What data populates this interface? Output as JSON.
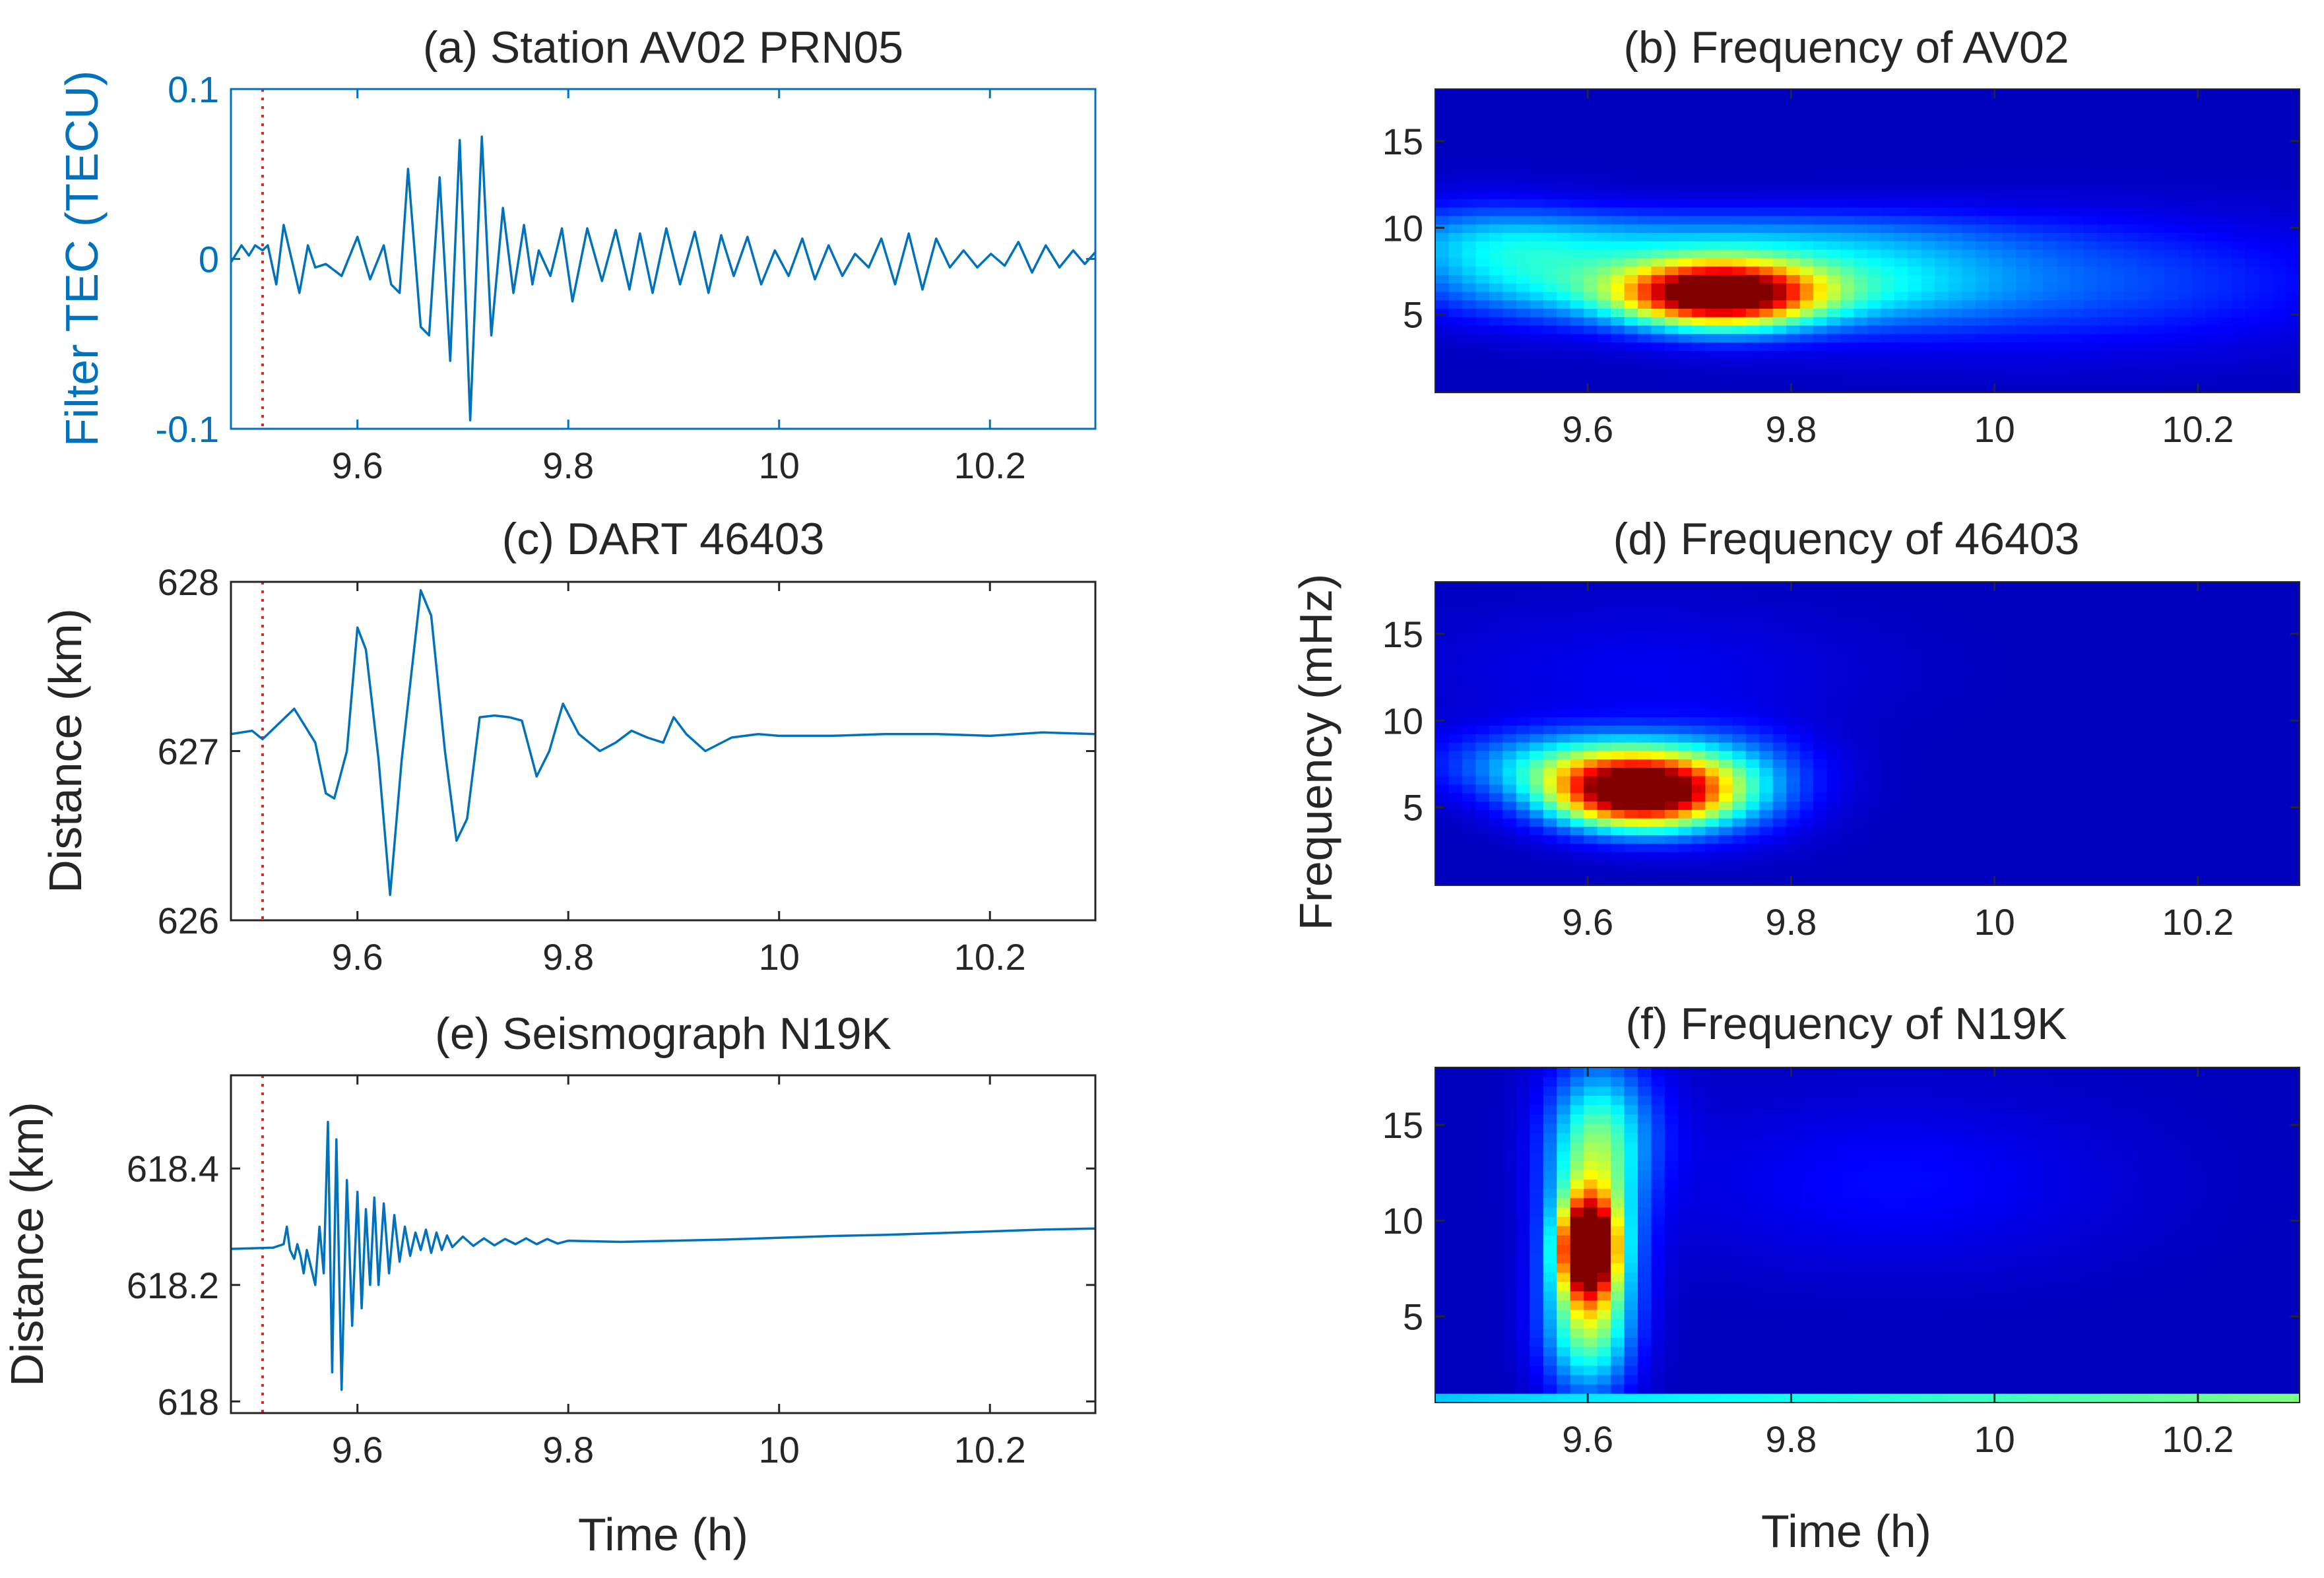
{
  "chart_data": [
    {
      "id": "a",
      "type": "line",
      "title": "(a) Station  AV02  PRN05",
      "xlabel": "",
      "ylabel": "Filter TEC (TECU)",
      "ylabel_color": "#0072BD",
      "xlim": [
        9.48,
        10.3
      ],
      "ylim": [
        -0.1,
        0.1
      ],
      "xticks": [
        9.6,
        9.8,
        10,
        10.2
      ],
      "xtick_labels": [
        "9.6",
        "9.8",
        "10",
        "10.2"
      ],
      "yticks": [
        -0.1,
        0,
        0.1
      ],
      "ytick_labels": [
        "-0.1",
        "0",
        "0.1"
      ],
      "marker_line_x": 9.51,
      "series": [
        {
          "name": "Filter TEC",
          "color": "#0072BD",
          "x": [
            9.48,
            9.49,
            9.497,
            9.503,
            9.51,
            9.515,
            9.523,
            9.53,
            9.545,
            9.553,
            9.56,
            9.57,
            9.585,
            9.6,
            9.612,
            9.625,
            9.632,
            9.64,
            9.648,
            9.66,
            9.668,
            9.678,
            9.688,
            9.697,
            9.707,
            9.718,
            9.727,
            9.738,
            9.748,
            9.758,
            9.766,
            9.772,
            9.783,
            9.794,
            9.804,
            9.818,
            9.832,
            9.845,
            9.858,
            9.868,
            9.88,
            9.893,
            9.906,
            9.92,
            9.933,
            9.945,
            9.957,
            9.97,
            9.983,
            9.996,
            10.009,
            10.022,
            10.034,
            10.047,
            10.06,
            10.072,
            10.085,
            10.097,
            10.11,
            10.123,
            10.136,
            10.149,
            10.162,
            10.175,
            10.188,
            10.201,
            10.214,
            10.227,
            10.24,
            10.253,
            10.266,
            10.279,
            10.29,
            10.3
          ],
          "y": [
            -0.002,
            0.008,
            0.002,
            0.008,
            0.005,
            0.008,
            -0.015,
            0.02,
            -0.02,
            0.008,
            -0.005,
            -0.003,
            -0.01,
            0.013,
            -0.012,
            0.008,
            -0.015,
            -0.02,
            0.053,
            -0.04,
            -0.045,
            0.048,
            -0.06,
            0.07,
            -0.095,
            0.072,
            -0.045,
            0.03,
            -0.02,
            0.02,
            -0.015,
            0.005,
            -0.01,
            0.018,
            -0.025,
            0.018,
            -0.013,
            0.017,
            -0.018,
            0.015,
            -0.02,
            0.018,
            -0.015,
            0.016,
            -0.02,
            0.014,
            -0.01,
            0.013,
            -0.015,
            0.005,
            -0.01,
            0.012,
            -0.012,
            0.008,
            -0.01,
            0.003,
            -0.005,
            0.012,
            -0.015,
            0.015,
            -0.018,
            0.012,
            -0.005,
            0.005,
            -0.005,
            0.003,
            -0.004,
            0.01,
            -0.008,
            0.008,
            -0.005,
            0.005,
            -0.003,
            0.004
          ]
        }
      ]
    },
    {
      "id": "c",
      "type": "line",
      "title": "(c) DART 46403",
      "xlabel": "",
      "ylabel": "Distance (km)",
      "xlim": [
        9.48,
        10.3
      ],
      "ylim": [
        626,
        628
      ],
      "xticks": [
        9.6,
        9.8,
        10,
        10.2
      ],
      "xtick_labels": [
        "9.6",
        "9.8",
        "10",
        "10.2"
      ],
      "yticks": [
        626,
        627,
        628
      ],
      "ytick_labels": [
        "626",
        "627",
        "628"
      ],
      "marker_line_x": 9.51,
      "series": [
        {
          "name": "DART 46403",
          "color": "#0072BD",
          "x": [
            9.48,
            9.5,
            9.51,
            9.52,
            9.54,
            9.56,
            9.57,
            9.578,
            9.59,
            9.6,
            9.608,
            9.62,
            9.631,
            9.642,
            9.66,
            9.67,
            9.683,
            9.694,
            9.704,
            9.716,
            9.73,
            9.744,
            9.756,
            9.77,
            9.782,
            9.795,
            9.81,
            9.83,
            9.845,
            9.86,
            9.875,
            9.89,
            9.9,
            9.912,
            9.93,
            9.955,
            9.98,
            10.0,
            10.05,
            10.1,
            10.15,
            10.2,
            10.25,
            10.3
          ],
          "y": [
            627.1,
            627.12,
            627.07,
            627.13,
            627.25,
            627.05,
            626.75,
            626.72,
            627.0,
            627.73,
            627.6,
            626.95,
            626.15,
            626.95,
            627.95,
            627.8,
            627.0,
            626.47,
            626.6,
            627.2,
            627.21,
            627.2,
            627.18,
            626.85,
            627.0,
            627.28,
            627.1,
            627.0,
            627.05,
            627.12,
            627.08,
            627.05,
            627.2,
            627.1,
            627.0,
            627.08,
            627.1,
            627.09,
            627.09,
            627.1,
            627.1,
            627.09,
            627.11,
            627.1
          ]
        }
      ]
    },
    {
      "id": "e",
      "type": "line",
      "title": "(e) Seismograph N19K",
      "xlabel": "Time (h)",
      "ylabel": "Distance (km)",
      "xlim": [
        9.48,
        10.3
      ],
      "ylim": [
        617.98,
        618.56
      ],
      "xticks": [
        9.6,
        9.8,
        10,
        10.2
      ],
      "xtick_labels": [
        "9.6",
        "9.8",
        "10",
        "10.2"
      ],
      "yticks": [
        618.0,
        618.2,
        618.4
      ],
      "ytick_labels": [
        "618",
        "618.2",
        "618.4"
      ],
      "marker_line_x": 9.51,
      "series": [
        {
          "name": "Seismograph N19K",
          "color": "#0072BD",
          "x": [
            9.48,
            9.5,
            9.52,
            9.53,
            9.533,
            9.536,
            9.54,
            9.543,
            9.546,
            9.549,
            9.552,
            9.556,
            9.56,
            9.564,
            9.568,
            9.572,
            9.576,
            9.58,
            9.585,
            9.59,
            9.595,
            9.6,
            9.604,
            9.608,
            9.612,
            9.616,
            9.62,
            9.625,
            9.63,
            9.635,
            9.64,
            9.645,
            9.65,
            9.655,
            9.66,
            9.665,
            9.67,
            9.675,
            9.68,
            9.685,
            9.69,
            9.7,
            9.71,
            9.72,
            9.73,
            9.74,
            9.75,
            9.76,
            9.77,
            9.78,
            9.79,
            9.8,
            9.85,
            9.9,
            9.95,
            10.0,
            10.05,
            10.1,
            10.15,
            10.2,
            10.25,
            10.3
          ],
          "y": [
            618.262,
            618.263,
            618.264,
            618.27,
            618.3,
            618.26,
            618.245,
            618.27,
            618.25,
            618.22,
            618.26,
            618.23,
            618.2,
            618.3,
            618.22,
            618.48,
            618.05,
            618.45,
            618.02,
            618.38,
            618.13,
            618.36,
            618.16,
            618.33,
            618.2,
            618.35,
            618.2,
            618.34,
            618.22,
            618.32,
            618.24,
            618.3,
            618.25,
            618.29,
            618.26,
            618.295,
            618.255,
            618.29,
            618.26,
            618.285,
            618.265,
            618.283,
            618.267,
            618.28,
            618.268,
            618.279,
            618.27,
            618.28,
            618.27,
            618.279,
            618.271,
            618.276,
            618.274,
            618.276,
            618.278,
            618.281,
            618.284,
            618.286,
            618.289,
            618.292,
            618.295,
            618.297
          ]
        }
      ]
    },
    {
      "id": "b",
      "type": "heatmap",
      "title": "(b) Frequency of AV02",
      "xlabel": "",
      "ylabel": "",
      "xlim": [
        9.45,
        10.3
      ],
      "ylim": [
        0.5,
        18
      ],
      "xticks": [
        9.6,
        9.8,
        10,
        10.2
      ],
      "xtick_labels": [
        "9.6",
        "9.8",
        "10",
        "10.2"
      ],
      "yticks": [
        5,
        10,
        15
      ],
      "ytick_labels": [
        "5",
        "10",
        "15"
      ],
      "colormap": "jet",
      "peaks": [
        {
          "t": 9.73,
          "f": 6.2,
          "st": 0.065,
          "sf": 1.3,
          "amp": 1.0
        },
        {
          "t": 9.6,
          "f": 6.8,
          "st": 0.09,
          "sf": 1.6,
          "amp": 0.22
        },
        {
          "t": 9.86,
          "f": 6.8,
          "st": 0.1,
          "sf": 1.7,
          "amp": 0.2
        },
        {
          "t": 9.7,
          "f": 9.5,
          "st": 0.2,
          "sf": 1.2,
          "amp": 0.16
        },
        {
          "t": 10.05,
          "f": 6.8,
          "st": 0.2,
          "sf": 2.5,
          "amp": 0.15
        },
        {
          "t": 9.5,
          "f": 8.5,
          "st": 0.08,
          "sf": 2.0,
          "amp": 0.18
        }
      ],
      "background": 0.06
    },
    {
      "id": "d",
      "type": "heatmap",
      "title": "(d) Frequency of 46403",
      "xlabel": "",
      "ylabel": "Frequency (mHz)",
      "xlim": [
        9.45,
        10.3
      ],
      "ylim": [
        0.5,
        18
      ],
      "xticks": [
        9.6,
        9.8,
        10,
        10.2
      ],
      "xtick_labels": [
        "9.6",
        "9.8",
        "10",
        "10.2"
      ],
      "yticks": [
        5,
        10,
        15
      ],
      "ytick_labels": [
        "5",
        "10",
        "15"
      ],
      "colormap": "jet",
      "peaks": [
        {
          "t": 9.65,
          "f": 5.8,
          "st": 0.06,
          "sf": 1.4,
          "amp": 1.0
        },
        {
          "t": 9.6,
          "f": 7.5,
          "st": 0.09,
          "sf": 1.4,
          "amp": 0.32
        },
        {
          "t": 9.74,
          "f": 6.5,
          "st": 0.06,
          "sf": 2.0,
          "amp": 0.18
        },
        {
          "t": 9.65,
          "f": 13.0,
          "st": 0.15,
          "sf": 2.5,
          "amp": 0.05
        }
      ],
      "background": 0.06
    },
    {
      "id": "f",
      "type": "heatmap",
      "title": "(f) Frequency of N19K",
      "xlabel": "Time (h)",
      "ylabel": "",
      "xlim": [
        9.45,
        10.3
      ],
      "ylim": [
        0.5,
        18
      ],
      "xticks": [
        9.6,
        9.8,
        10,
        10.2
      ],
      "xtick_labels": [
        "9.6",
        "9.8",
        "10",
        "10.2"
      ],
      "yticks": [
        5,
        10,
        15
      ],
      "ytick_labels": [
        "5",
        "10",
        "15"
      ],
      "colormap": "jet",
      "peaks": [
        {
          "t": 9.6,
          "f": 8.6,
          "st": 0.018,
          "sf": 1.6,
          "amp": 1.0
        },
        {
          "t": 9.605,
          "f": 10.5,
          "st": 0.03,
          "sf": 4.0,
          "amp": 0.45
        },
        {
          "t": 9.6,
          "f": 4.5,
          "st": 0.03,
          "sf": 2.5,
          "amp": 0.35
        },
        {
          "t": 9.62,
          "f": 15.0,
          "st": 0.04,
          "sf": 2.5,
          "amp": 0.18
        },
        {
          "t": 9.9,
          "f": 12.0,
          "st": 0.15,
          "sf": 3.0,
          "amp": 0.07
        }
      ],
      "baseline_band": {
        "f_max": 1.2,
        "amp_start": 0.32,
        "amp_end": 0.5
      },
      "background": 0.06
    }
  ]
}
